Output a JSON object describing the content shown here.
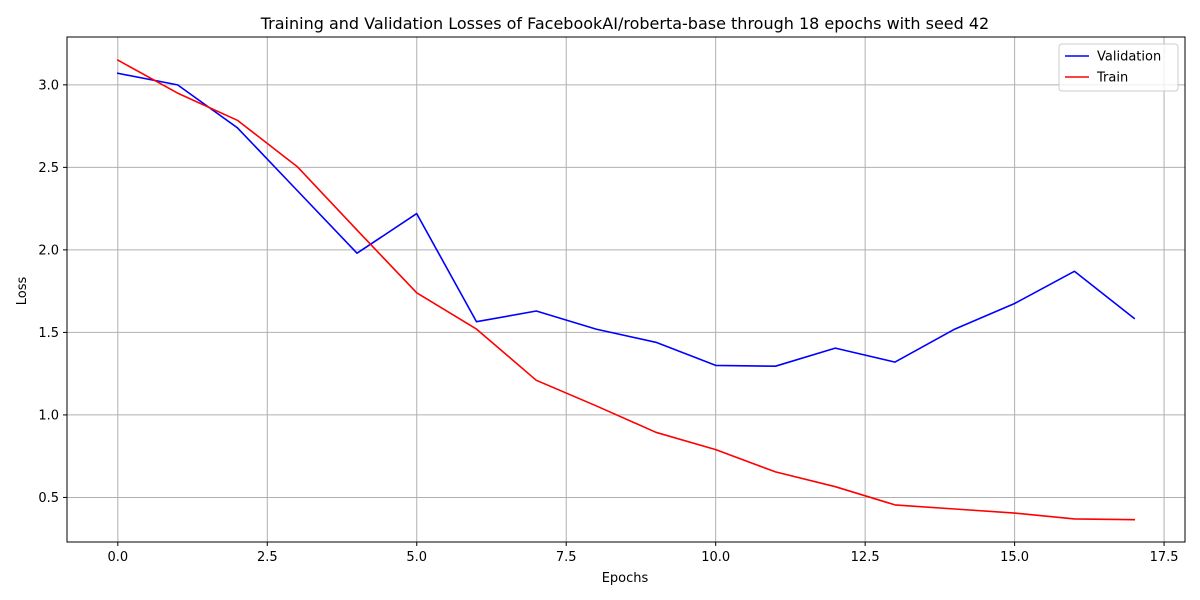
{
  "chart_data": {
    "type": "line",
    "title": "Training and Validation Losses of FacebookAI/roberta-base through 18 epochs with seed 42",
    "xlabel": "Epochs",
    "ylabel": "Loss",
    "xlim": [
      -0.85,
      17.85
    ],
    "ylim": [
      0.23,
      3.29
    ],
    "xticks": [
      0.0,
      2.5,
      5.0,
      7.5,
      10.0,
      12.5,
      15.0,
      17.5
    ],
    "xtick_labels": [
      "0.0",
      "2.5",
      "5.0",
      "7.5",
      "10.0",
      "12.5",
      "15.0",
      "17.5"
    ],
    "yticks": [
      0.5,
      1.0,
      1.5,
      2.0,
      2.5,
      3.0
    ],
    "ytick_labels": [
      "0.5",
      "1.0",
      "1.5",
      "2.0",
      "2.5",
      "3.0"
    ],
    "grid": true,
    "legend_position": "top-right",
    "x": [
      0,
      1,
      2,
      3,
      4,
      5,
      6,
      7,
      8,
      9,
      10,
      11,
      12,
      13,
      14,
      15,
      16,
      17
    ],
    "series": [
      {
        "name": "Validation",
        "color": "#0000ff",
        "values": [
          3.07,
          3.0,
          2.74,
          2.36,
          1.98,
          2.22,
          1.565,
          1.63,
          1.52,
          1.44,
          1.3,
          1.295,
          1.405,
          1.32,
          1.52,
          1.675,
          1.87,
          1.585
        ]
      },
      {
        "name": "Train",
        "color": "#ff0000",
        "values": [
          3.15,
          2.95,
          2.785,
          2.505,
          2.12,
          1.74,
          1.52,
          1.21,
          1.055,
          0.895,
          0.79,
          0.655,
          0.565,
          0.455,
          0.43,
          0.405,
          0.37,
          0.365
        ]
      }
    ]
  }
}
